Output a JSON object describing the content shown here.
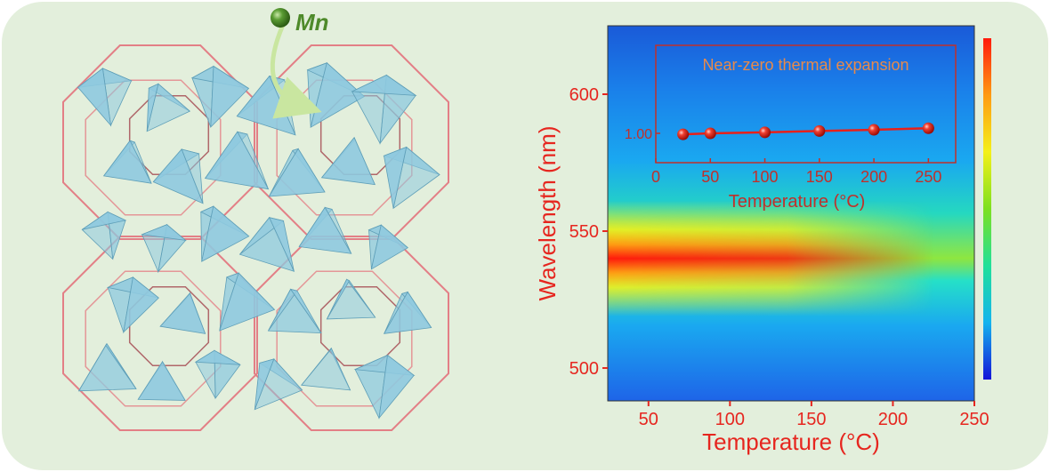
{
  "figure": {
    "background_color": "#e3efdc",
    "dopant_label": "Mn",
    "dopant_color": "#4e8a2a",
    "tetra_color": "#8ec9df",
    "cage_color": "#e37f86"
  },
  "chart_data": [
    {
      "type": "heatmap",
      "xlabel": "Temperature (°C)",
      "ylabel": "Wavelength (nm)",
      "xlim": [
        25,
        250
      ],
      "ylim": [
        488,
        625
      ],
      "xticks": [
        50,
        100,
        150,
        200,
        250
      ],
      "yticks": [
        500,
        550,
        600
      ],
      "colormap": [
        "#1414d8",
        "#14b4ee",
        "#20e09a",
        "#7de020",
        "#f4f019",
        "#ff9a12",
        "#ff1a0c"
      ],
      "emission_peak_nm": 540,
      "intensity_high_at_temperature": 25,
      "intensity_fades_by_temperature": 225,
      "axis_color": "#e6261f"
    },
    {
      "type": "scatter",
      "title": "Near-zero thermal expansion",
      "xlabel": "Temperature (°C)",
      "xlim": [
        0,
        275
      ],
      "ylim": [
        0.985,
        1.045
      ],
      "xticks": [
        0,
        50,
        100,
        150,
        200,
        250
      ],
      "yticks": [
        1.0
      ],
      "ytick_labels": [
        "1.00"
      ],
      "series": [
        {
          "x": [
            25,
            50,
            100,
            150,
            200,
            250
          ],
          "y": [
            0.9995,
            1.0,
            1.0005,
            1.0012,
            1.0018,
            1.0026
          ]
        }
      ],
      "marker_color": "#e8201a"
    }
  ]
}
